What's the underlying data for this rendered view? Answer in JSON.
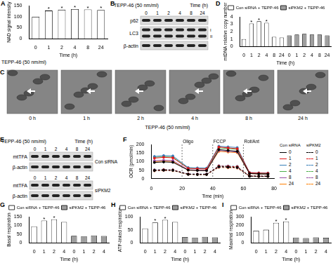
{
  "figure": [
    {
      "panel": "B",
      "type": "blot",
      "row_label": "TEPP-46 (50 nm/ml)",
      "header": "Time (h)",
      "lanes": [
        "0",
        "1",
        "2",
        "4",
        "8",
        "24"
      ],
      "groups": [
        {
          "rows": [
            {
              "label": "p62"
            },
            {
              "label": "LC3",
              "bands": [
                "I",
                "II"
              ]
            },
            {
              "label": "β-actin"
            }
          ]
        }
      ]
    },
    {
      "panel": "C",
      "type": "images",
      "labels": [
        "0 h",
        "1 h",
        "2 h",
        "4 h",
        "8 h",
        "24 h"
      ],
      "caption": "TEPP-46 (50 nm/ml)"
    },
    {
      "panel": "E",
      "type": "blot",
      "row_label": "TEPP-46 (50 nm/ml)",
      "header": "Time (h)",
      "lanes": [
        "0",
        "1",
        "2",
        "4",
        "8",
        "24"
      ],
      "groups": [
        {
          "label": "Con siRNA",
          "rows": [
            {
              "label": "mtTFA"
            },
            {
              "label": "β-actin"
            }
          ]
        },
        {
          "label": "siPKM2",
          "rows": [
            {
              "label": "mtTFA"
            },
            {
              "label": "β-actin"
            }
          ]
        }
      ]
    }
  ],
  "chart_data": [
    {
      "panel": "A",
      "type": "bar",
      "y_label": "NAD signal intensity",
      "x_label": "Time (h)",
      "row_label": "TEPP-46 (50 nm/ml)",
      "categories": [
        "0",
        "1",
        "2",
        "4",
        "8",
        "24"
      ],
      "values": [
        100,
        128,
        132,
        135,
        133,
        131
      ],
      "significance": [
        null,
        "*",
        "*",
        "*",
        "*",
        "*"
      ],
      "color": "#ffffff",
      "ylim": [
        0,
        150
      ],
      "yticks": [
        0,
        50,
        100,
        150
      ],
      "grid": false
    },
    {
      "panel": "D",
      "type": "bar",
      "y_label": "mtDNA relative copy number",
      "x_label": "Time (h)",
      "categories": [
        "0",
        "1",
        "2",
        "4",
        "8",
        "24",
        "0",
        "1",
        "2",
        "4",
        "8",
        "24"
      ],
      "series": [
        {
          "name": "Con siRNA + TEPP-46",
          "color": "#ffffff",
          "values": [
            1.0,
            3.1,
            3.4,
            3.2,
            1.3,
            1.2,
            null,
            null,
            null,
            null,
            null,
            null
          ],
          "significance": [
            null,
            "*",
            "*",
            "*",
            null,
            null,
            null,
            null,
            null,
            null,
            null,
            null
          ]
        },
        {
          "name": "siPKM2 + TEPP-46",
          "color": "#9e9e9e",
          "values": [
            null,
            null,
            null,
            null,
            null,
            null,
            1.5,
            1.6,
            1.7,
            1.6,
            1.6,
            1.5
          ]
        }
      ],
      "ylim": [
        0,
        4
      ],
      "yticks": [
        0,
        1,
        2,
        3,
        4
      ],
      "legend": "top",
      "grid": false
    },
    {
      "panel": "F",
      "type": "line",
      "y_label": "OCR (pmol/min)",
      "x_label": "Time (min)",
      "x": [
        2,
        8,
        14,
        24,
        30,
        36,
        44,
        50,
        56,
        64,
        70,
        76
      ],
      "xlim": [
        0,
        80
      ],
      "xticks": [
        0,
        20,
        40,
        60,
        80
      ],
      "ylim": [
        0,
        200
      ],
      "yticks": [
        0,
        50,
        100,
        150,
        200
      ],
      "annotations": [
        {
          "x": 20,
          "text": "Oligo"
        },
        {
          "x": 40,
          "text": "FCCP"
        },
        {
          "x": 60,
          "text": "Rot/Ant"
        }
      ],
      "marker": "circle",
      "legend": "right",
      "grid": false,
      "series": [
        {
          "name": "0",
          "group": "Con siRNA",
          "color": "#000000",
          "line_style": "solid",
          "values": [
            95,
            98,
            96,
            50,
            48,
            47,
            170,
            165,
            160,
            30,
            28,
            27
          ]
        },
        {
          "name": "1",
          "group": "Con siRNA",
          "color": "#e41a1c",
          "line_style": "solid",
          "values": [
            120,
            125,
            122,
            60,
            58,
            57,
            185,
            180,
            175,
            35,
            33,
            32
          ]
        },
        {
          "name": "2",
          "group": "Con siRNA",
          "color": "#377eb8",
          "line_style": "solid",
          "values": [
            130,
            135,
            133,
            65,
            63,
            62,
            190,
            186,
            182,
            36,
            34,
            33
          ]
        },
        {
          "name": "4",
          "group": "Con siRNA",
          "color": "#4daf4a",
          "line_style": "solid",
          "values": [
            125,
            128,
            126,
            62,
            60,
            59,
            180,
            176,
            172,
            34,
            32,
            31
          ]
        },
        {
          "name": "8",
          "group": "Con siRNA",
          "color": "#984ea3",
          "line_style": "solid",
          "values": [
            105,
            108,
            106,
            52,
            50,
            49,
            165,
            160,
            156,
            31,
            29,
            28
          ]
        },
        {
          "name": "24",
          "group": "Con siRNA",
          "color": "#ff7f00",
          "line_style": "solid",
          "values": [
            100,
            102,
            101,
            50,
            49,
            48,
            160,
            156,
            152,
            30,
            28,
            27
          ]
        },
        {
          "name": "0",
          "group": "siPKM2",
          "color": "#000000",
          "line_style": "dashed",
          "values": [
            48,
            50,
            49,
            26,
            25,
            25,
            70,
            68,
            66,
            15,
            14,
            14
          ]
        },
        {
          "name": "1",
          "group": "siPKM2",
          "color": "#e41a1c",
          "line_style": "dashed",
          "values": [
            50,
            52,
            51,
            27,
            26,
            26,
            74,
            72,
            70,
            16,
            15,
            15
          ]
        },
        {
          "name": "2",
          "group": "siPKM2",
          "color": "#377eb8",
          "line_style": "dashed",
          "values": [
            52,
            53,
            52,
            28,
            27,
            27,
            76,
            74,
            72,
            16,
            15,
            15
          ]
        },
        {
          "name": "4",
          "group": "siPKM2",
          "color": "#4daf4a",
          "line_style": "dashed",
          "values": [
            49,
            51,
            50,
            26,
            25,
            25,
            72,
            70,
            68,
            15,
            14,
            14
          ]
        },
        {
          "name": "8",
          "group": "siPKM2",
          "color": "#984ea3",
          "line_style": "dashed",
          "values": [
            47,
            49,
            48,
            25,
            24,
            24,
            68,
            66,
            64,
            14,
            13,
            13
          ]
        },
        {
          "name": "24",
          "group": "siPKM2",
          "color": "#ff7f00",
          "line_style": "dashed",
          "values": [
            46,
            48,
            47,
            25,
            24,
            24,
            66,
            64,
            62,
            14,
            13,
            13
          ]
        }
      ]
    },
    {
      "panel": "G",
      "type": "bar",
      "y_label": "Basal respiration",
      "x_label": "Time (h)",
      "categories": [
        "0",
        "1",
        "2",
        "4",
        "0",
        "1",
        "2",
        "4"
      ],
      "series": [
        {
          "name": "Con siRNA + TEPP-46",
          "color": "#ffffff",
          "values": [
            95,
            128,
            135,
            120,
            null,
            null,
            null,
            null
          ],
          "significance": [
            null,
            "*",
            "*",
            null,
            null,
            null,
            null,
            null
          ]
        },
        {
          "name": "siPKM2 + TEPP-46",
          "color": "#9e9e9e",
          "values": [
            null,
            null,
            null,
            null,
            40,
            38,
            42,
            39
          ]
        }
      ],
      "ylim": [
        0,
        150
      ],
      "yticks": [
        0,
        50,
        100,
        150
      ],
      "legend": "top",
      "grid": false
    },
    {
      "panel": "H",
      "type": "bar",
      "y_label": "ATP-linked respiration",
      "x_label": "Time (h)",
      "categories": [
        "0",
        "1",
        "2",
        "4",
        "0",
        "1",
        "2",
        "4"
      ],
      "series": [
        {
          "name": "Con siRNA + TEPP-46",
          "color": "#ffffff",
          "values": [
            55,
            78,
            88,
            80,
            null,
            null,
            null,
            null
          ],
          "significance": [
            null,
            "*",
            "*",
            null,
            null,
            null,
            null,
            null
          ]
        },
        {
          "name": "siPKM2 + TEPP-46",
          "color": "#9e9e9e",
          "values": [
            null,
            null,
            null,
            null,
            22,
            20,
            23,
            21
          ]
        }
      ],
      "ylim": [
        0,
        100
      ],
      "yticks": [
        0,
        50,
        100
      ],
      "legend": "top",
      "grid": false
    },
    {
      "panel": "I",
      "type": "bar",
      "y_label": "Maximal respiration",
      "x_label": "Time (h)",
      "categories": [
        "0",
        "1",
        "2",
        "4",
        "0",
        "1",
        "2",
        "4"
      ],
      "series": [
        {
          "name": "Con siRNA + TEPP-46",
          "color": "#ffffff",
          "values": [
            140,
            150,
            230,
            245,
            null,
            null,
            null,
            null
          ],
          "significance": [
            null,
            null,
            "*",
            "*",
            null,
            null,
            null,
            null
          ]
        },
        {
          "name": "siPKM2 + TEPP-46",
          "color": "#9e9e9e",
          "values": [
            null,
            null,
            null,
            null,
            60,
            55,
            62,
            58
          ]
        }
      ],
      "ylim": [
        0,
        300
      ],
      "yticks": [
        0,
        100,
        200,
        300
      ],
      "legend": "top",
      "grid": false
    }
  ]
}
